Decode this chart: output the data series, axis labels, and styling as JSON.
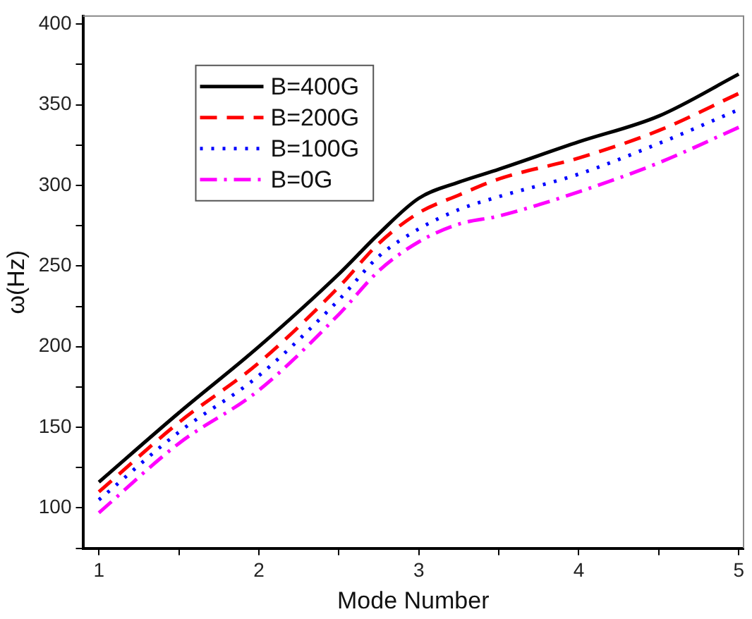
{
  "chart_data": {
    "type": "line",
    "xlabel": "Mode Number",
    "ylabel": "ω(Hz)",
    "x": [
      1,
      1.5,
      2,
      2.5,
      2.75,
      3,
      3.25,
      3.5,
      4,
      4.5,
      5
    ],
    "xlim": [
      0.9,
      5.03
    ],
    "ylim": [
      75,
      405
    ],
    "xticks": [
      1,
      {
        "value": 1.5,
        "label": null
      },
      2,
      {
        "value": 2.5,
        "label": null
      },
      3,
      {
        "value": 3.5,
        "label": null
      },
      4,
      {
        "value": 4.5,
        "label": null
      },
      5
    ],
    "yticks": [
      {
        "value": 75,
        "label": null
      },
      100,
      {
        "value": 125,
        "label": null
      },
      150,
      {
        "value": 175,
        "label": null
      },
      200,
      {
        "value": 225,
        "label": null
      },
      250,
      {
        "value": 275,
        "label": null
      },
      300,
      {
        "value": 325,
        "label": null
      },
      350,
      {
        "value": 375,
        "label": null
      },
      400
    ],
    "legend": "top left",
    "marker": "none",
    "grid": false,
    "series": [
      {
        "name": "B=400G",
        "color": "#000000",
        "line_style": "solid",
        "values": [
          116,
          159,
          200,
          245,
          270,
          292,
          302,
          310,
          327,
          343,
          369
        ]
      },
      {
        "name": "B=200G",
        "color": "#ff0000",
        "line_style": "dashed",
        "values": [
          110,
          153,
          190,
          237,
          264,
          283,
          294,
          304,
          317,
          334,
          357
        ]
      },
      {
        "name": "B=100G",
        "color": "#0000ff",
        "line_style": "dotted",
        "values": [
          105,
          147,
          182,
          229,
          256,
          273,
          285,
          293,
          307,
          326,
          347
        ]
      },
      {
        "name": "B=0G",
        "color": "#ff00ff",
        "line_style": "dashdot",
        "values": [
          97,
          140,
          173,
          220,
          247,
          265,
          276,
          281,
          296,
          314,
          336
        ]
      }
    ]
  }
}
